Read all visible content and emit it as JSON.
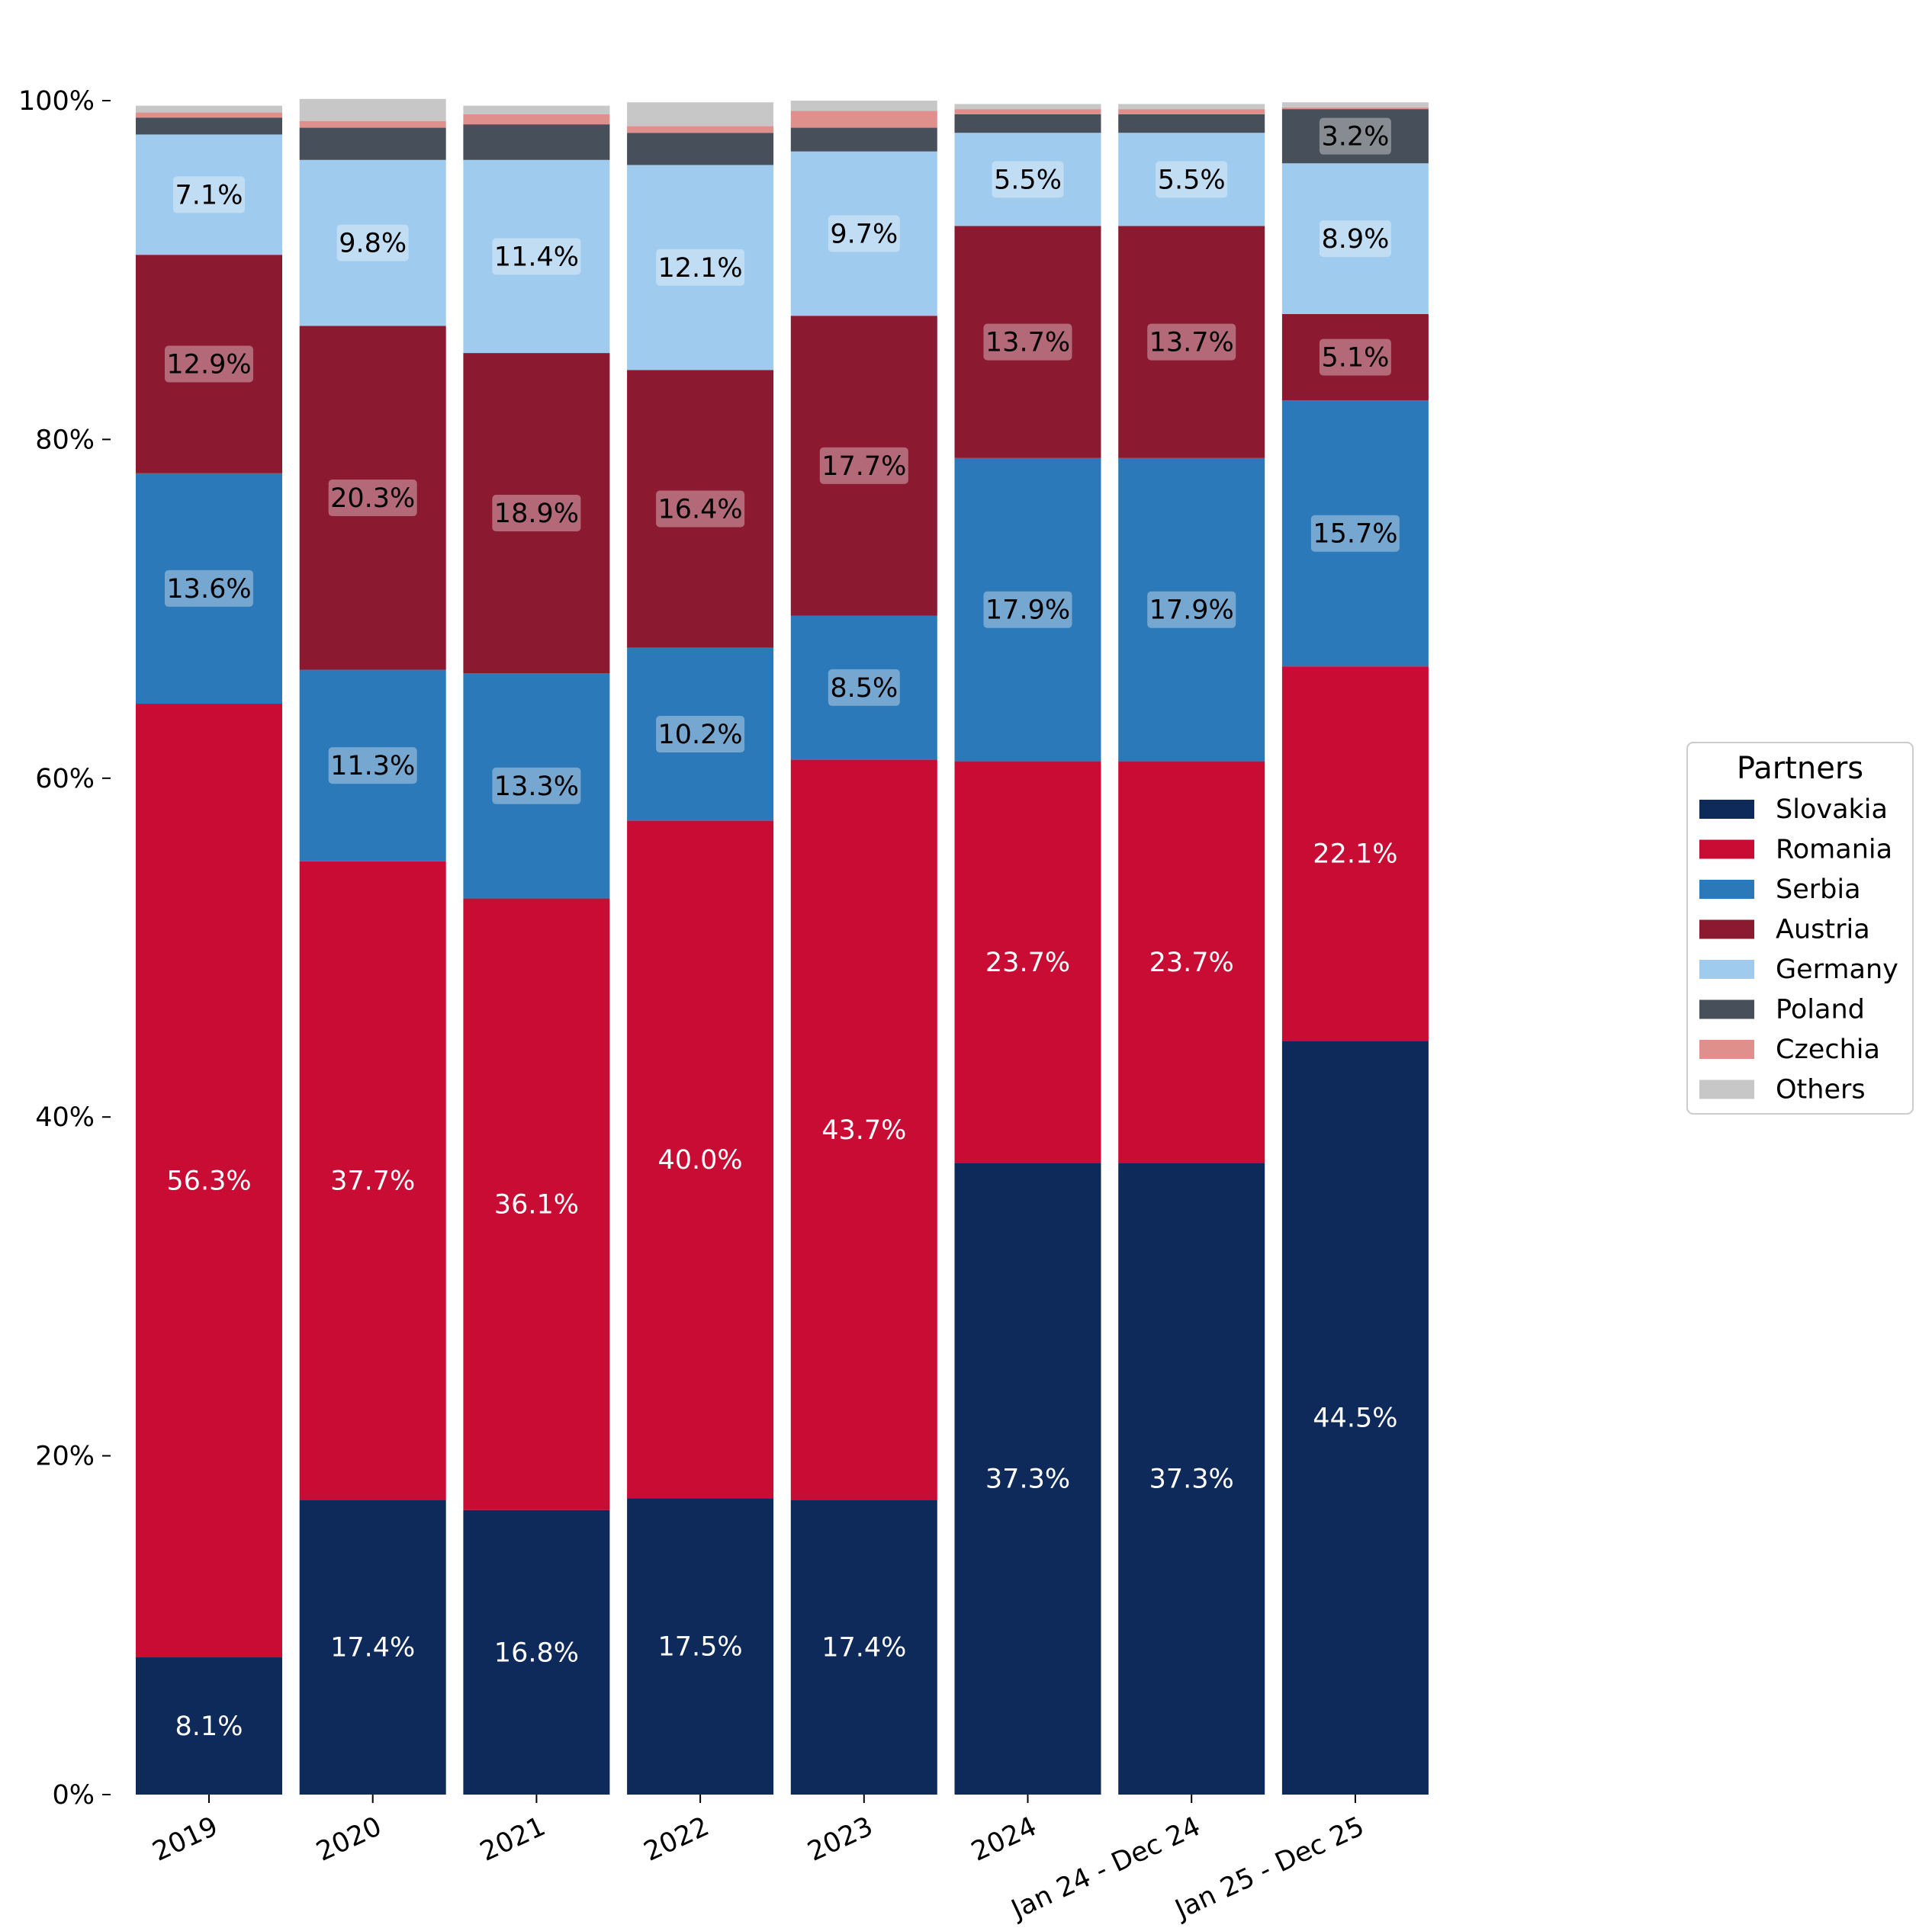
{
  "chart_data": {
    "type": "bar",
    "stacked": true,
    "normalized": true,
    "categories": [
      "2019",
      "2020",
      "2021",
      "2022",
      "2023",
      "2024",
      "Jan 24 - Dec 24",
      "Jan 25 - Dec 25"
    ],
    "ylim": [
      0,
      100
    ],
    "yticks": [
      "0%",
      "20%",
      "40%",
      "60%",
      "80%",
      "100%"
    ],
    "ytick_values": [
      0,
      20,
      40,
      60,
      80,
      100
    ],
    "grid": false,
    "legend": {
      "title": "Partners",
      "placement": "right"
    },
    "series": [
      {
        "name": "Slovakia",
        "color": "#0e2a5a",
        "label_color": "#ffffff",
        "label_box": false,
        "values": [
          8.1,
          17.4,
          16.8,
          17.5,
          17.4,
          37.3,
          37.3,
          44.5
        ],
        "labels": [
          "8.1%",
          "17.4%",
          "16.8%",
          "17.5%",
          "17.4%",
          "37.3%",
          "37.3%",
          "44.5%"
        ]
      },
      {
        "name": "Romania",
        "color": "#c90c34",
        "label_color": "#ffffff",
        "label_box": false,
        "values": [
          56.3,
          37.7,
          36.1,
          40.0,
          43.7,
          23.7,
          23.7,
          22.1
        ],
        "labels": [
          "56.3%",
          "37.7%",
          "36.1%",
          "40.0%",
          "43.7%",
          "23.7%",
          "23.7%",
          "22.1%"
        ]
      },
      {
        "name": "Serbia",
        "color": "#2b79b9",
        "label_color": "#000000",
        "label_box": true,
        "values": [
          13.6,
          11.3,
          13.3,
          10.2,
          8.5,
          17.9,
          17.9,
          15.7
        ],
        "labels": [
          "13.6%",
          "11.3%",
          "13.3%",
          "10.2%",
          "8.5%",
          "17.9%",
          "17.9%",
          "15.7%"
        ]
      },
      {
        "name": "Austria",
        "color": "#8b1a30",
        "label_color": "#000000",
        "label_box": true,
        "values": [
          12.9,
          20.3,
          18.9,
          16.4,
          17.7,
          13.7,
          13.7,
          5.1
        ],
        "labels": [
          "12.9%",
          "20.3%",
          "18.9%",
          "16.4%",
          "17.7%",
          "13.7%",
          "13.7%",
          "5.1%"
        ]
      },
      {
        "name": "Germany",
        "color": "#9fcbee",
        "label_color": "#000000",
        "label_box": true,
        "values": [
          7.1,
          9.8,
          11.4,
          12.1,
          9.7,
          5.5,
          5.5,
          8.9
        ],
        "labels": [
          "7.1%",
          "9.8%",
          "11.4%",
          "12.1%",
          "9.7%",
          "5.5%",
          "5.5%",
          "8.9%"
        ]
      },
      {
        "name": "Poland",
        "color": "#474f5a",
        "label_color": "#000000",
        "label_box": true,
        "values": [
          1.0,
          1.9,
          2.1,
          1.9,
          1.4,
          1.1,
          1.1,
          3.2
        ],
        "labels": [
          "",
          "",
          "",
          "",
          "",
          "",
          "",
          "3.2%"
        ]
      },
      {
        "name": "Czechia",
        "color": "#df8f8c",
        "label_color": "#000000",
        "label_box": true,
        "values": [
          0.3,
          0.4,
          0.6,
          0.4,
          1.0,
          0.3,
          0.3,
          0.1
        ],
        "labels": [
          "",
          "",
          "",
          "",
          "",
          "",
          "",
          ""
        ]
      },
      {
        "name": "Others",
        "color": "#c7c7c7",
        "label_color": "#000000",
        "label_box": true,
        "values": [
          0.4,
          1.3,
          0.5,
          1.4,
          0.6,
          0.3,
          0.3,
          0.3
        ],
        "labels": [
          "",
          "",
          "",
          "",
          "",
          "",
          "",
          ""
        ]
      }
    ]
  }
}
